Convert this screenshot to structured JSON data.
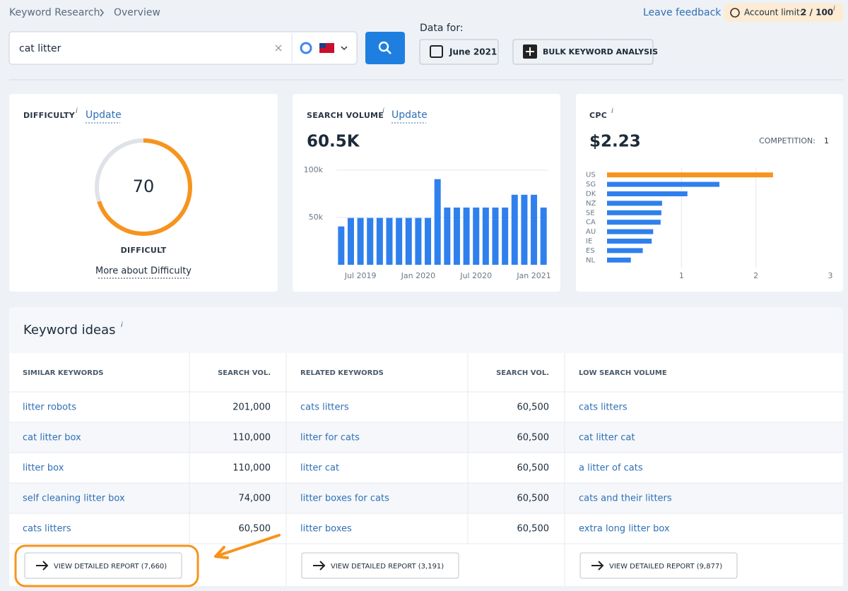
{
  "breadcrumb": [
    "Keyword Research",
    "Overview"
  ],
  "leave_feedback": "Leave feedback",
  "account_limit": {
    "label": "Account limit:",
    "value": "2 / 100",
    "info": "i"
  },
  "search": {
    "query": "cat litter"
  },
  "data_for": {
    "label": "Data for:",
    "date": "June 2021"
  },
  "bulk_button": "BULK KEYWORD ANALYSIS",
  "difficulty": {
    "title": "DIFFICULTY",
    "info": "i",
    "update": "Update",
    "value": 70,
    "level": "DIFFICULT",
    "more": "More about Difficulty",
    "color": "#f7941d"
  },
  "search_volume": {
    "title": "SEARCH VOLUME",
    "info": "i",
    "update": "Update",
    "total": "60.5K",
    "chart": {
      "type": "bar",
      "color": "#2f80ed",
      "categories": [
        null,
        null,
        "Jul 2019",
        null,
        null,
        null,
        null,
        null,
        "Jan 2020",
        null,
        null,
        null,
        null,
        null,
        "Jul 2020",
        null,
        null,
        null,
        null,
        null,
        "Jan 2021",
        null
      ],
      "values": [
        40500,
        49500,
        49500,
        49500,
        49500,
        49500,
        49500,
        49500,
        49500,
        49500,
        90500,
        60500,
        60500,
        60500,
        60500,
        60500,
        60500,
        60500,
        74000,
        74000,
        74000,
        60500
      ],
      "ylim": [
        0,
        100000
      ],
      "yticks": [
        {
          "value": 50000,
          "label": "50k"
        },
        {
          "value": 100000,
          "label": "100k"
        }
      ],
      "grid": true
    }
  },
  "cpc": {
    "title": "CPC",
    "info": "i",
    "value": "$2.23",
    "competition_label": "COMPETITION:",
    "competition": 1,
    "chart": {
      "type": "hbar",
      "categories": [
        "US",
        "SG",
        "DK",
        "NZ",
        "SE",
        "CA",
        "AU",
        "IE",
        "ES",
        "NL"
      ],
      "values": [
        2.23,
        1.51,
        1.08,
        0.74,
        0.73,
        0.72,
        0.62,
        0.6,
        0.48,
        0.32
      ],
      "colors": [
        "#f7941d",
        "#2f80ed",
        "#2f80ed",
        "#2f80ed",
        "#2f80ed",
        "#2f80ed",
        "#2f80ed",
        "#2f80ed",
        "#2f80ed",
        "#2f80ed"
      ],
      "xlim": [
        0,
        3
      ],
      "xticks": [
        1,
        2,
        3
      ],
      "grid": true
    }
  },
  "keyword_ideas": {
    "title": "Keyword ideas",
    "info": "i",
    "groups": [
      {
        "headers": [
          "SIMILAR KEYWORDS",
          "SEARCH VOL."
        ],
        "rows": [
          [
            "litter robots",
            "201,000"
          ],
          [
            "cat litter box",
            "110,000"
          ],
          [
            "litter box",
            "110,000"
          ],
          [
            "self cleaning litter box",
            "74,000"
          ],
          [
            "cats litters",
            "60,500"
          ]
        ],
        "button": "VIEW DETAILED REPORT (7,660)"
      },
      {
        "headers": [
          "RELATED KEYWORDS",
          "SEARCH VOL."
        ],
        "rows": [
          [
            "cats litters",
            "60,500"
          ],
          [
            "litter for cats",
            "60,500"
          ],
          [
            "litter cat",
            "60,500"
          ],
          [
            "litter boxes for cats",
            "60,500"
          ],
          [
            "litter boxes",
            "60,500"
          ]
        ],
        "button": "VIEW DETAILED REPORT (3,191)"
      },
      {
        "headers": [
          "LOW SEARCH VOLUME"
        ],
        "rows": [
          [
            "cats litters"
          ],
          [
            "cat litter cat"
          ],
          [
            "a litter of cats"
          ],
          [
            "cats and their litters"
          ],
          [
            "extra long litter box"
          ]
        ],
        "button": "VIEW DETAILED REPORT (9,877)"
      }
    ]
  }
}
